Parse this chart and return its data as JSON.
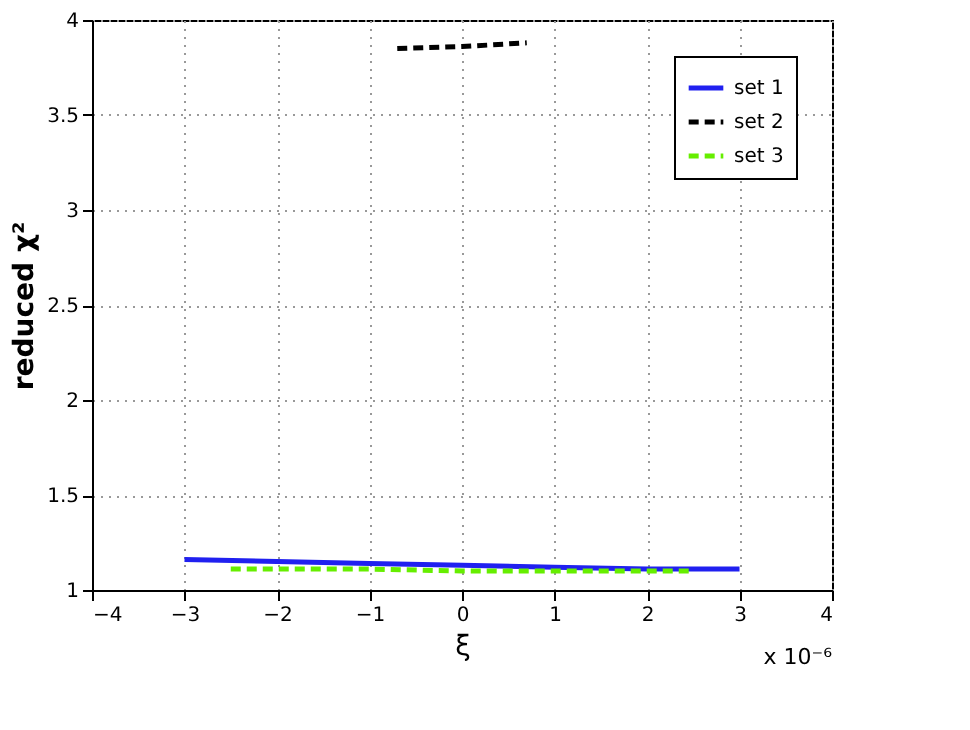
{
  "chart_data": {
    "type": "line",
    "xlabel": "ξ",
    "ylabel": "reduced χ²",
    "xlim": [
      -4,
      4
    ],
    "xticks": [
      -4,
      -3,
      -2,
      -1,
      0,
      1,
      2,
      3,
      4
    ],
    "ylim": [
      1,
      4
    ],
    "yticks": [
      1,
      1.5,
      2,
      2.5,
      3,
      3.5,
      4
    ],
    "grid": true,
    "legend": "top right",
    "annotations": [
      "x 10⁻⁶"
    ],
    "series": [
      {
        "name": "set 1",
        "color": "#2020f0",
        "line_style": "solid",
        "x": [
          -3,
          -2,
          -1,
          0,
          1,
          2,
          3
        ],
        "values": [
          1.16,
          1.15,
          1.14,
          1.13,
          1.12,
          1.11,
          1.11
        ]
      },
      {
        "name": "set 2",
        "color": "#000000",
        "line_style": "dashed",
        "x": [
          -0.7,
          0,
          0.7
        ],
        "values": [
          3.85,
          3.86,
          3.88
        ]
      },
      {
        "name": "set 3",
        "color": "#66ee00",
        "line_style": "dashed",
        "x": [
          -2.5,
          -1,
          0,
          1,
          2.5
        ],
        "values": [
          1.11,
          1.11,
          1.1,
          1.1,
          1.1
        ]
      }
    ]
  }
}
